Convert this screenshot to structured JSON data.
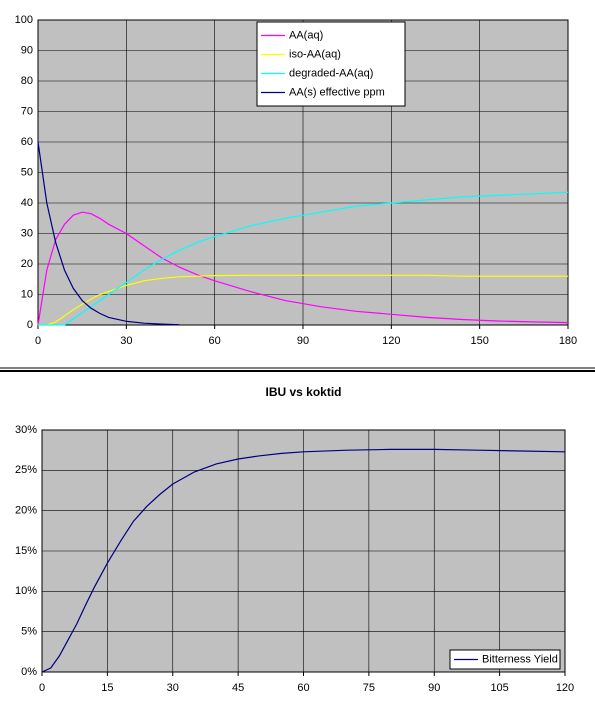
{
  "chart_data": [
    {
      "type": "line",
      "x": [
        0,
        3,
        6,
        9,
        12,
        15,
        18,
        21,
        24,
        30,
        36,
        42,
        48,
        54,
        60,
        72,
        84,
        96,
        108,
        120,
        132,
        144,
        156,
        168,
        180
      ],
      "series": [
        {
          "name": "AA(aq)",
          "color": "#ff00ff",
          "values": [
            0,
            18,
            28,
            33,
            36,
            37,
            36.5,
            35,
            33,
            30,
            26,
            22,
            19,
            16.5,
            14.5,
            11,
            8,
            6,
            4.5,
            3.5,
            2.5,
            1.8,
            1.3,
            1,
            0.8
          ]
        },
        {
          "name": "iso-AA(aq)",
          "color": "#ffff00",
          "values": [
            0,
            0,
            1,
            3,
            5,
            6.8,
            8.5,
            10,
            11,
            13,
            14.5,
            15.3,
            15.8,
            16,
            16.2,
            16.3,
            16.3,
            16.3,
            16.3,
            16.3,
            16.3,
            16,
            16,
            16,
            16
          ]
        },
        {
          "name": "degraded-AA(aq)",
          "color": "#00ffff",
          "values": [
            0,
            0,
            0,
            0,
            2,
            4,
            6,
            8,
            10,
            14,
            18,
            21.5,
            24.5,
            27,
            29,
            32.5,
            35,
            37,
            39,
            40,
            41,
            42,
            42.5,
            43,
            43.5
          ]
        },
        {
          "name": "AA(s) effective ppm",
          "color": "#000080",
          "values": [
            60,
            40,
            27,
            18,
            12,
            8,
            5.5,
            3.8,
            2.5,
            1.2,
            0.6,
            0.3,
            0.1,
            null,
            null,
            null,
            null,
            null,
            null,
            null,
            null,
            null,
            null,
            null,
            null
          ]
        }
      ],
      "xlim": [
        0,
        180
      ],
      "xticks": [
        0,
        30,
        60,
        90,
        120,
        150,
        180
      ],
      "ylim": [
        0,
        100
      ],
      "yticks": [
        0,
        10,
        20,
        30,
        40,
        50,
        60,
        70,
        80,
        90,
        100
      ],
      "grid": true,
      "legend": "top-center"
    },
    {
      "type": "line",
      "title": "IBU vs koktid",
      "x": [
        0,
        2,
        4,
        6,
        8,
        10,
        12,
        15,
        18,
        21,
        24,
        27,
        30,
        35,
        40,
        45,
        50,
        55,
        60,
        70,
        80,
        90,
        100,
        110,
        120
      ],
      "series": [
        {
          "name": "Bitterness Yield",
          "color": "#000080",
          "values": [
            0,
            0.5,
            2,
            4,
            6,
            8.3,
            10.5,
            13.5,
            16.2,
            18.7,
            20.5,
            22,
            23.3,
            24.8,
            25.8,
            26.4,
            26.8,
            27.1,
            27.3,
            27.5,
            27.6,
            27.6,
            27.5,
            27.4,
            27.3
          ]
        }
      ],
      "xlim": [
        0,
        120
      ],
      "xticks": [
        0,
        15,
        30,
        45,
        60,
        75,
        90,
        105,
        120
      ],
      "ylim": [
        0,
        30
      ],
      "yticks": [
        {
          "value": 0,
          "label": "0%"
        },
        {
          "value": 5,
          "label": "5%"
        },
        {
          "value": 10,
          "label": "10%"
        },
        {
          "value": 15,
          "label": "15%"
        },
        {
          "value": 20,
          "label": "20%"
        },
        {
          "value": 25,
          "label": "25%"
        },
        {
          "value": 30,
          "label": "30%"
        }
      ],
      "grid": true,
      "legend": "bottom-right"
    }
  ]
}
